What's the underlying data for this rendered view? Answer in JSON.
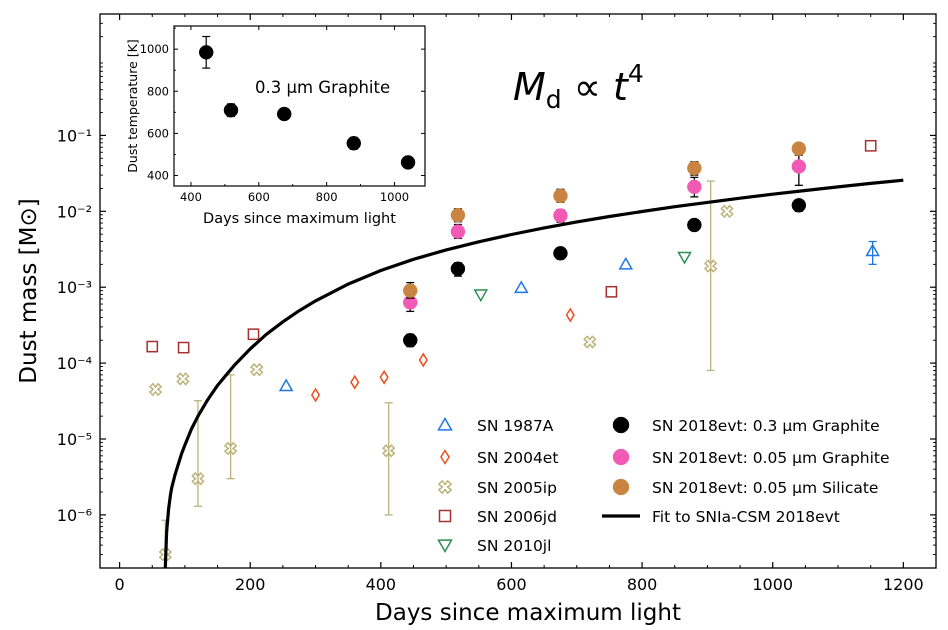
{
  "chart_data": [
    {
      "type": "scatter",
      "xlabel": "Days since maximum light",
      "ylabel": "Dust mass [M⊙]",
      "xlim": [
        -30,
        1250
      ],
      "ylim_log10": [
        -6.7,
        0.6
      ],
      "yscale": "log",
      "x_ticks": [
        0,
        200,
        400,
        600,
        800,
        1000,
        1200
      ],
      "x_tick_labels": [
        "0",
        "200",
        "400",
        "600",
        "800",
        "1000",
        "1200"
      ],
      "y_ticks": [
        -6,
        -5,
        -4,
        -3,
        -2,
        -1
      ],
      "y_tick_labels": [
        "10⁻⁶",
        "10⁻⁵",
        "10⁻⁴",
        "10⁻³",
        "10⁻²",
        "10⁻¹"
      ],
      "annotation": "M_d ∝ t⁴",
      "annotation_parts": {
        "M": "M",
        "sub": "d",
        "prop": " ∝ t",
        "exp": "4"
      },
      "legend": "bottom-right",
      "series": [
        {
          "name": "SN 1987A",
          "marker": "triangle-up",
          "color": "#1f77e4",
          "filled": false,
          "points": [
            {
              "x": 255,
              "y": 5e-05
            },
            {
              "x": 615,
              "y": 0.00098
            },
            {
              "x": 775,
              "y": 0.002
            },
            {
              "x": 1153,
              "y": 0.003,
              "ylo": 0.002,
              "yhi": 0.004
            }
          ]
        },
        {
          "name": "SN 2004et",
          "marker": "diamond",
          "color": "#ec4f1c",
          "filled": false,
          "points": [
            {
              "x": 300,
              "y": 3.8e-05
            },
            {
              "x": 360,
              "y": 5.6e-05
            },
            {
              "x": 405,
              "y": 6.5e-05
            },
            {
              "x": 465,
              "y": 0.00011
            },
            {
              "x": 690,
              "y": 0.00043
            }
          ]
        },
        {
          "name": "SN 2005ip",
          "marker": "x-circle",
          "color": "#bcb37a",
          "filled": false,
          "points": [
            {
              "x": 55,
              "y": 4.5e-05
            },
            {
              "x": 70,
              "y": 3e-07,
              "ylo": 2e-07,
              "yhi": 8.5e-07
            },
            {
              "x": 97,
              "y": 6.2e-05
            },
            {
              "x": 120,
              "y": 3e-06,
              "ylo": 1.3e-06,
              "yhi": 3.2e-05
            },
            {
              "x": 170,
              "y": 7.5e-06,
              "ylo": 3e-06,
              "yhi": 7e-05
            },
            {
              "x": 210,
              "y": 8.2e-05
            },
            {
              "x": 412,
              "y": 7e-06,
              "ylo": 1e-06,
              "yhi": 3e-05
            },
            {
              "x": 720,
              "y": 0.00019
            },
            {
              "x": 905,
              "y": 0.0019,
              "ylo": 8e-05,
              "yhi": 0.025
            },
            {
              "x": 930,
              "y": 0.01
            }
          ]
        },
        {
          "name": "SN 2006jd",
          "marker": "square",
          "color": "#a4302f",
          "filled": false,
          "points": [
            {
              "x": 50,
              "y": 0.000165
            },
            {
              "x": 98,
              "y": 0.00016
            },
            {
              "x": 205,
              "y": 0.00024
            },
            {
              "x": 753,
              "y": 0.00087
            },
            {
              "x": 1150,
              "y": 0.073
            }
          ]
        },
        {
          "name": "SN 2010jl",
          "marker": "triangle-down",
          "color": "#2c8c52",
          "filled": false,
          "points": [
            {
              "x": 553,
              "y": 0.0008
            },
            {
              "x": 865,
              "y": 0.0025
            }
          ]
        },
        {
          "name": "SN 2018evt: 0.3 μm Graphite",
          "marker": "circle",
          "color": "#000000",
          "filled": true,
          "points": [
            {
              "x": 445,
              "y": 0.0002,
              "ylo": 0.000165,
              "yhi": 0.00024
            },
            {
              "x": 518,
              "y": 0.00175,
              "ylo": 0.0014,
              "yhi": 0.0021
            },
            {
              "x": 675,
              "y": 0.0028,
              "ylo": 0.00235,
              "yhi": 0.0033
            },
            {
              "x": 880,
              "y": 0.0066,
              "ylo": 0.0056,
              "yhi": 0.0078
            },
            {
              "x": 1040,
              "y": 0.012,
              "ylo": 0.01,
              "yhi": 0.014
            }
          ]
        },
        {
          "name": "SN 2018evt: 0.05 μm Graphite",
          "marker": "circle",
          "color": "#f05ab4",
          "filled": true,
          "points": [
            {
              "x": 445,
              "y": 0.00063,
              "ylo": 0.00048,
              "yhi": 0.0008
            },
            {
              "x": 518,
              "y": 0.0054,
              "ylo": 0.0044,
              "yhi": 0.0067
            },
            {
              "x": 675,
              "y": 0.0088,
              "ylo": 0.0072,
              "yhi": 0.0105
            },
            {
              "x": 880,
              "y": 0.021,
              "ylo": 0.0155,
              "yhi": 0.028
            },
            {
              "x": 1040,
              "y": 0.039,
              "ylo": 0.022,
              "yhi": 0.058
            }
          ]
        },
        {
          "name": "SN 2018evt: 0.05 μm Silicate",
          "marker": "circle",
          "color": "#c88440",
          "filled": true,
          "points": [
            {
              "x": 445,
              "y": 0.0009,
              "ylo": 0.00072,
              "yhi": 0.00115
            },
            {
              "x": 518,
              "y": 0.0089,
              "ylo": 0.0073,
              "yhi": 0.0108
            },
            {
              "x": 675,
              "y": 0.016,
              "ylo": 0.0132,
              "yhi": 0.0195
            },
            {
              "x": 880,
              "y": 0.037,
              "ylo": 0.03,
              "yhi": 0.045
            },
            {
              "x": 1040,
              "y": 0.067,
              "ylo": 0.055,
              "yhi": 0.078
            }
          ]
        }
      ],
      "fit": {
        "name": "Fit to SNIa-CSM 2018evt",
        "color": "#000000",
        "x": [
          70,
          72,
          75,
          78,
          80,
          85,
          90,
          95,
          100,
          110,
          120,
          135,
          150,
          175,
          200,
          225,
          250,
          275,
          300,
          350,
          400,
          450,
          500,
          550,
          600,
          650,
          700,
          750,
          800,
          850,
          900,
          950,
          1000,
          1050,
          1100,
          1150,
          1200
        ],
        "y": [
          2e-07,
          5.9e-07,
          1.2e-06,
          1.85e-06,
          2.3e-06,
          3.4e-06,
          4.7e-06,
          6.4e-06,
          8.3e-06,
          1.35e-05,
          2e-05,
          3.3e-05,
          5.1e-05,
          9.2e-05,
          0.000154,
          0.00024,
          0.00035,
          0.00049,
          0.00066,
          0.0011,
          0.00166,
          0.00233,
          0.0031,
          0.00397,
          0.00495,
          0.00605,
          0.00725,
          0.00855,
          0.00995,
          0.0115,
          0.0131,
          0.0149,
          0.0168,
          0.0188,
          0.021,
          0.0233,
          0.0257
        ]
      }
    },
    {
      "type": "scatter",
      "xlabel": "Days since maximum light",
      "ylabel": "Dust temperature [K]",
      "xlim": [
        350,
        1090
      ],
      "ylim": [
        350,
        1110
      ],
      "x_ticks": [
        400,
        600,
        800,
        1000
      ],
      "y_ticks": [
        400,
        600,
        800,
        1000
      ],
      "annotation": "0.3 μm Graphite",
      "series": [
        {
          "name": "",
          "marker": "circle",
          "color": "#000000",
          "filled": true,
          "points": [
            {
              "x": 445,
              "y": 985,
              "ylo": 910,
              "yhi": 1060
            },
            {
              "x": 518,
              "y": 710,
              "ylo": 680,
              "yhi": 740
            },
            {
              "x": 675,
              "y": 692,
              "ylo": 672,
              "yhi": 712
            },
            {
              "x": 880,
              "y": 553,
              "ylo": 525,
              "yhi": 581
            },
            {
              "x": 1040,
              "y": 462,
              "ylo": 444,
              "yhi": 480
            }
          ]
        }
      ]
    }
  ]
}
